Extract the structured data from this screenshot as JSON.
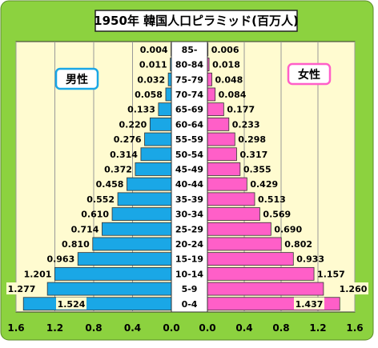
{
  "chart_data": {
    "type": "bar",
    "orientation": "horizontal",
    "layout": "population-pyramid",
    "title": "1950年 韓国人口ピラミッド(百万人)",
    "categories": [
      "85-",
      "80-84",
      "75-79",
      "70-74",
      "65-69",
      "60-64",
      "55-59",
      "50-54",
      "45-49",
      "40-44",
      "35-39",
      "30-34",
      "25-29",
      "20-24",
      "15-19",
      "10-14",
      "5-9",
      "0-4"
    ],
    "series": [
      {
        "name": "男性",
        "side": "left",
        "color": "#1aa7e6",
        "values": [
          0.004,
          0.011,
          0.032,
          0.058,
          0.133,
          0.22,
          0.276,
          0.314,
          0.372,
          0.458,
          0.552,
          0.61,
          0.714,
          0.81,
          0.963,
          1.201,
          1.277,
          1.524
        ],
        "labels": [
          "0.004",
          "0.011",
          "0.032",
          "0.058",
          "0.133",
          "0.220",
          "0.276",
          "0.314",
          "0.372",
          "0.458",
          "0.552",
          "0.610",
          "0.714",
          "0.810",
          "0.963",
          "1.201",
          "1.277",
          "1.524"
        ]
      },
      {
        "name": "女性",
        "side": "right",
        "color": "#ff5fc8",
        "values": [
          0.006,
          0.018,
          0.048,
          0.084,
          0.177,
          0.233,
          0.298,
          0.317,
          0.355,
          0.429,
          0.513,
          0.569,
          0.69,
          0.802,
          0.933,
          1.157,
          1.26,
          1.437
        ],
        "labels": [
          "0.006",
          "0.018",
          "0.048",
          "0.084",
          "0.177",
          "0.233",
          "0.298",
          "0.317",
          "0.355",
          "0.429",
          "0.513",
          "0.569",
          "0.690",
          "0.802",
          "0.933",
          "1.157",
          "1.260",
          "1.437"
        ]
      }
    ],
    "axis": {
      "left_ticks": [
        "1.6",
        "1.2",
        "0.8",
        "0.4",
        "0.0"
      ],
      "left_tick_values": [
        1.6,
        1.2,
        0.8,
        0.4,
        0.0
      ],
      "right_ticks": [
        "0.0",
        "0.4",
        "0.8",
        "1.2",
        "1.6"
      ],
      "right_tick_values": [
        0.0,
        0.4,
        0.8,
        1.2,
        1.6
      ],
      "range": [
        0,
        1.6
      ]
    },
    "grid": true,
    "legend_placement": "top-left / top-right",
    "colors": {
      "frame_bg": "#8cd23f",
      "plot_bg": "#fffbd0",
      "male": "#1aa7e6",
      "female": "#ff5fc8",
      "male_legend_border": "#1aa7e6",
      "female_legend_border": "#ff5fc8"
    }
  }
}
